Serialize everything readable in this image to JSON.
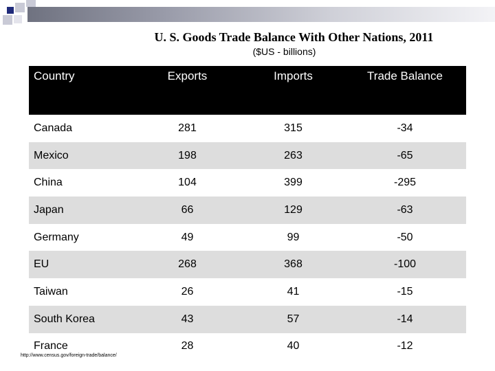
{
  "title": "U. S. Goods Trade Balance With Other Nations, 2011",
  "subtitle": "($US - billions)",
  "table": {
    "headers": [
      "Country",
      "Exports",
      "Imports",
      "Trade Balance"
    ],
    "rows": [
      [
        "Canada",
        "281",
        "315",
        "-34"
      ],
      [
        "Mexico",
        "198",
        "263",
        "-65"
      ],
      [
        "China",
        "104",
        "399",
        "-295"
      ],
      [
        "Japan",
        "66",
        "129",
        "-63"
      ],
      [
        "Germany",
        "49",
        "99",
        "-50"
      ],
      [
        "EU",
        "268",
        "368",
        "-100"
      ],
      [
        "Taiwan",
        "26",
        "41",
        "-15"
      ],
      [
        "South Korea",
        "43",
        "57",
        "-14"
      ],
      [
        "France",
        "28",
        "40",
        "-12"
      ]
    ]
  },
  "source": "http://www.census.gov/foreign-trade/balance/",
  "colors": {
    "header_bg": "#000000",
    "alt_row_bg": "#dddddd",
    "accent": "#1f2a7a"
  }
}
